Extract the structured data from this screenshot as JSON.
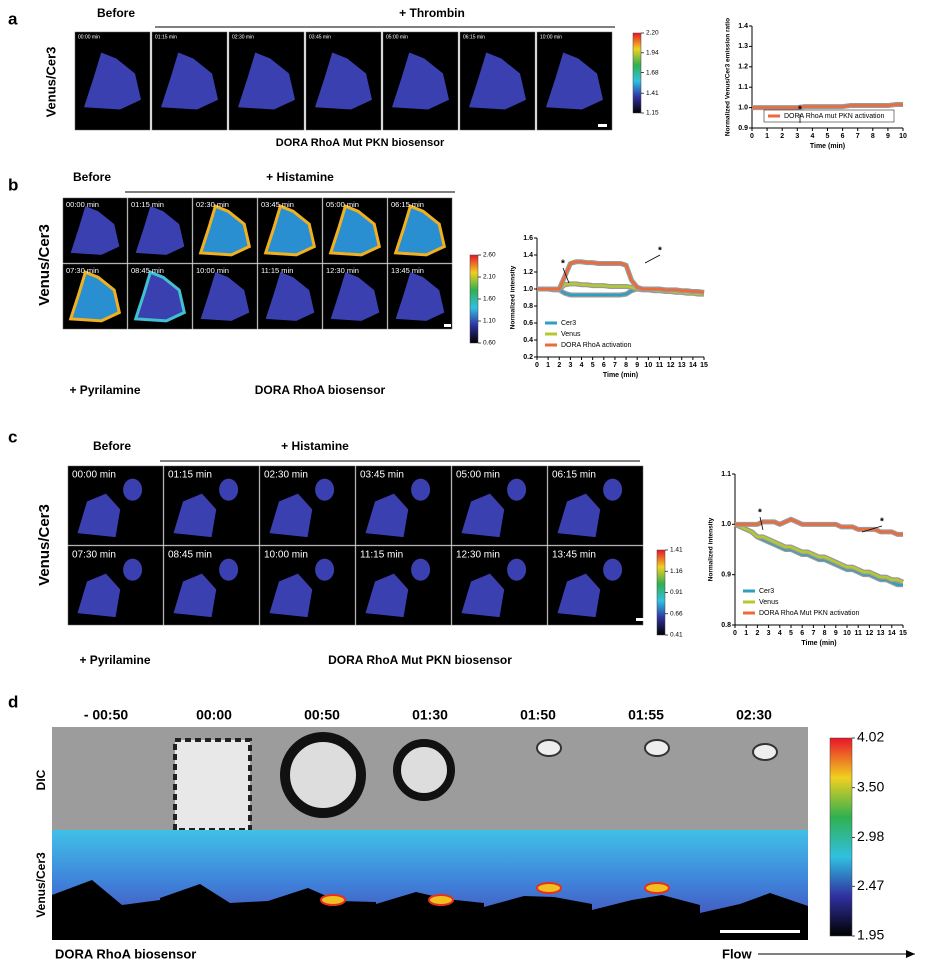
{
  "figure": {
    "panel_a": {
      "label": "a",
      "row_label": "Venus/Cer3",
      "before": "Before",
      "treatment": "+ Thrombin",
      "times": [
        "00:00 min",
        "01:15 min",
        "02:30 min",
        "03:45 min",
        "05:00 min",
        "06:15 min",
        "10:00 min"
      ],
      "caption": "DORA RhoA Mut PKN biosensor",
      "colorbar_ticks": [
        {
          "value": 2.2,
          "label": "2.20"
        },
        1.94,
        1.68,
        1.41,
        1.15
      ]
    },
    "panel_b": {
      "label": "b",
      "row_label": "Venus/Cer3",
      "before": "Before",
      "treatment": "+ Histamine",
      "times": [
        "00:00 min",
        "01:15 min",
        "02:30 min",
        "03:45 min",
        "05:00 min",
        "06:15 min",
        "07:30 min",
        "08:45 min",
        "10:00 min",
        "11:15 min",
        "12:30 min",
        "13:45 min"
      ],
      "post": "+ Pyrilamine",
      "caption": "DORA RhoA biosensor",
      "colorbar_ticks": [
        {
          "value": 2.6,
          "label": "2.60"
        },
        {
          "value": 2.1,
          "label": "2.10"
        },
        {
          "value": 1.6,
          "label": "1.60"
        },
        {
          "value": 1.1,
          "label": "1.10"
        },
        {
          "value": 0.6,
          "label": "0.60"
        }
      ]
    },
    "panel_c": {
      "label": "c",
      "row_label": "Venus/Cer3",
      "before": "Before",
      "treatment": "+ Histamine",
      "times": [
        "00:00 min",
        "01:15 min",
        "02:30 min",
        "03:45 min",
        "05:00 min",
        "06:15 min",
        "07:30 min",
        "08:45 min",
        "10:00 min",
        "11:15 min",
        "12:30 min",
        "13:45 min"
      ],
      "post": "+ Pyrilamine",
      "caption": "DORA RhoA Mut PKN biosensor",
      "colorbar_ticks": [
        1.41,
        1.16,
        0.91,
        0.66,
        0.41
      ]
    },
    "panel_d": {
      "label": "d",
      "row_labels": [
        "DIC",
        "Venus/Cer3"
      ],
      "times": [
        "- 00:50",
        "00:00",
        "00:50",
        "01:30",
        "01:50",
        "01:55",
        "02:30"
      ],
      "caption": "DORA RhoA biosensor",
      "flow": "Flow",
      "colorbar_ticks": [
        4.02,
        {
          "value": 3.5,
          "label": "3.50"
        },
        2.98,
        2.47,
        1.95
      ]
    }
  },
  "chart_data": [
    {
      "type": "line",
      "xlabel": "Time (min)",
      "ylabel": "Normalized Venus/Cer3 emission ratio",
      "x": [
        0,
        0.5,
        1,
        1.5,
        2,
        2.5,
        3,
        3.5,
        4,
        4.5,
        5,
        5.5,
        6,
        6.5,
        7,
        7.5,
        8,
        8.5,
        9,
        9.5,
        10
      ],
      "series": [
        {
          "name": "DORA RhoA mut PKN activation",
          "color": "#ee6a3a",
          "values": [
            1.0,
            1.0,
            1.0,
            1.0,
            1.0,
            1.0,
            1.0,
            1.005,
            1.005,
            1.005,
            1.005,
            1.005,
            1.005,
            1.01,
            1.01,
            1.01,
            1.01,
            1.01,
            1.01,
            1.015,
            1.015
          ]
        }
      ],
      "xlim": [
        0,
        10
      ],
      "xticks": [
        0,
        1,
        2,
        3,
        4,
        5,
        6,
        7,
        8,
        9,
        10
      ],
      "ylim": [
        0.9,
        1.4
      ],
      "yticks": [
        0.9,
        {
          "value": 1,
          "label": "1.0"
        },
        1.1,
        1.2,
        1.3,
        1.4
      ],
      "legend": "lower right",
      "annotations": [
        "*"
      ]
    },
    {
      "type": "line",
      "xlabel": "Time (min)",
      "ylabel": "Normalized intensity",
      "x": [
        0,
        0.5,
        1,
        1.5,
        2,
        2.5,
        3,
        3.5,
        4,
        4.5,
        5,
        5.5,
        6,
        6.5,
        7,
        7.5,
        8,
        8.5,
        9,
        9.5,
        10,
        10.5,
        11,
        11.5,
        12,
        12.5,
        13,
        13.5,
        14,
        14.5,
        15
      ],
      "series": [
        {
          "name": "Cer3",
          "color": "#2f9fbf",
          "values": [
            1.0,
            1.0,
            1.0,
            0.99,
            0.99,
            0.95,
            0.93,
            0.93,
            0.93,
            0.93,
            0.93,
            0.93,
            0.93,
            0.93,
            0.93,
            0.93,
            0.94,
            0.98,
            1.0,
            1.0,
            1.0,
            0.99,
            0.99,
            0.99,
            0.98,
            0.98,
            0.97,
            0.97,
            0.96,
            0.96,
            0.95
          ]
        },
        {
          "name": "Venus",
          "color": "#b5c92f",
          "values": [
            1.0,
            1.0,
            1.0,
            1.0,
            1.0,
            1.05,
            1.06,
            1.06,
            1.05,
            1.05,
            1.04,
            1.04,
            1.04,
            1.03,
            1.03,
            1.03,
            1.03,
            1.02,
            1.0,
            0.99,
            0.99,
            0.98,
            0.98,
            0.97,
            0.97,
            0.96,
            0.96,
            0.95,
            0.95,
            0.94,
            0.94
          ]
        },
        {
          "name": "DORA RhoA activation",
          "color": "#ee6a3a",
          "values": [
            1.0,
            1.0,
            1.0,
            1.0,
            1.0,
            1.15,
            1.3,
            1.32,
            1.32,
            1.31,
            1.31,
            1.3,
            1.3,
            1.3,
            1.3,
            1.3,
            1.28,
            1.1,
            1.02,
            1.0,
            1.0,
            1.0,
            1.0,
            0.99,
            0.99,
            0.99,
            0.98,
            0.98,
            0.97,
            0.97,
            0.96
          ]
        }
      ],
      "xlim": [
        0,
        15
      ],
      "xticks": [
        0,
        1,
        2,
        3,
        4,
        5,
        6,
        7,
        8,
        9,
        10,
        11,
        12,
        13,
        14,
        15
      ],
      "ylim": [
        0.2,
        1.6
      ],
      "yticks": [
        0.2,
        0.4,
        0.6,
        0.8,
        {
          "value": 1,
          "label": "1.0"
        },
        1.2,
        1.4,
        1.6
      ],
      "legend": "lower left",
      "annotations": [
        "*",
        "*"
      ]
    },
    {
      "type": "line",
      "xlabel": "Time (min)",
      "ylabel": "Normalized intensity",
      "x": [
        0,
        0.5,
        1,
        1.5,
        2,
        2.5,
        3,
        3.5,
        4,
        4.5,
        5,
        5.5,
        6,
        6.5,
        7,
        7.5,
        8,
        8.5,
        9,
        9.5,
        10,
        10.5,
        11,
        11.5,
        12,
        12.5,
        13,
        13.5,
        14,
        14.5,
        15
      ],
      "series": [
        {
          "name": "Cer3",
          "color": "#2f9fbf",
          "values": [
            1.0,
            0.995,
            0.99,
            0.985,
            0.975,
            0.97,
            0.965,
            0.96,
            0.955,
            0.95,
            0.95,
            0.945,
            0.94,
            0.94,
            0.935,
            0.93,
            0.93,
            0.925,
            0.92,
            0.915,
            0.91,
            0.91,
            0.905,
            0.9,
            0.9,
            0.895,
            0.89,
            0.89,
            0.885,
            0.88,
            0.88
          ]
        },
        {
          "name": "Venus",
          "color": "#b5c92f",
          "values": [
            1.0,
            0.995,
            0.99,
            0.985,
            0.975,
            0.975,
            0.97,
            0.965,
            0.96,
            0.955,
            0.955,
            0.95,
            0.945,
            0.945,
            0.94,
            0.935,
            0.935,
            0.93,
            0.925,
            0.92,
            0.915,
            0.915,
            0.91,
            0.905,
            0.905,
            0.9,
            0.895,
            0.895,
            0.89,
            0.89,
            0.885
          ]
        },
        {
          "name": "DORA RhoA Mut PKN activation",
          "color": "#ee6a3a",
          "values": [
            1.0,
            1.0,
            1.0,
            1.0,
            1.0,
            1.005,
            1.005,
            1.005,
            1.0,
            1.005,
            1.01,
            1.005,
            1.0,
            1.0,
            1.0,
            1.0,
            1.0,
            1.0,
            1.0,
            0.995,
            0.995,
            0.995,
            0.99,
            0.99,
            0.99,
            0.99,
            0.985,
            0.985,
            0.985,
            0.98,
            0.98
          ]
        }
      ],
      "xlim": [
        0,
        15
      ],
      "xticks": [
        0,
        1,
        2,
        3,
        4,
        5,
        6,
        7,
        8,
        9,
        10,
        11,
        12,
        13,
        14,
        15
      ],
      "ylim": [
        0.8,
        1.1
      ],
      "yticks": [
        0.8,
        0.9,
        {
          "value": 1,
          "label": "1.0"
        },
        1.1
      ],
      "legend": "lower left",
      "annotations": [
        "*",
        "*"
      ]
    }
  ]
}
